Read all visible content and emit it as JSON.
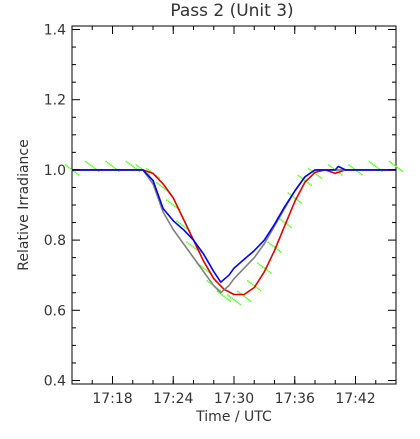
{
  "chart_data": {
    "type": "line",
    "title": "Pass 2 (Unit 3)",
    "xlabel": "Time / UTC",
    "ylabel": "Relative Irradiance",
    "xlim": [
      "17:14",
      "17:46"
    ],
    "ylim": [
      0.39,
      1.41
    ],
    "x_ticks": [
      "17:18",
      "17:24",
      "17:30",
      "17:36",
      "17:42"
    ],
    "y_ticks": [
      "0.4",
      "0.6",
      "0.8",
      "1.0",
      "1.2",
      "1.4"
    ],
    "grid": false,
    "legend": "none",
    "series": [
      {
        "color": "#66ff33",
        "style": "scatter",
        "points": [
          [
            "17:14",
            1.0
          ],
          [
            "17:16",
            1.01
          ],
          [
            "17:18",
            1.01
          ],
          [
            "17:20",
            1.01
          ],
          [
            "17:21",
            1.0
          ],
          [
            "17:22",
            0.99
          ],
          [
            "17:23",
            0.95
          ],
          [
            "17:24",
            0.9
          ],
          [
            "17:25",
            0.84
          ],
          [
            "17:26",
            0.78
          ],
          [
            "17:27",
            0.72
          ],
          [
            "17:28",
            0.67
          ],
          [
            "17:29",
            0.64
          ],
          [
            "17:30",
            0.63
          ],
          [
            "17:31",
            0.64
          ],
          [
            "17:32",
            0.67
          ],
          [
            "17:33",
            0.72
          ],
          [
            "17:34",
            0.78
          ],
          [
            "17:35",
            0.85
          ],
          [
            "17:36",
            0.92
          ],
          [
            "17:37",
            0.97
          ],
          [
            "17:38",
            0.99
          ],
          [
            "17:40",
            1.0
          ],
          [
            "17:42",
            1.0
          ],
          [
            "17:44",
            1.01
          ],
          [
            "17:46",
            1.01
          ]
        ]
      },
      {
        "color": "#dd0000",
        "style": "line",
        "points": [
          [
            "17:14",
            1.0
          ],
          [
            "17:20",
            1.0
          ],
          [
            "17:21",
            1.0
          ],
          [
            "17:22",
            0.99
          ],
          [
            "17:23",
            0.96
          ],
          [
            "17:24",
            0.92
          ],
          [
            "17:25",
            0.86
          ],
          [
            "17:26",
            0.8
          ],
          [
            "17:27",
            0.74
          ],
          [
            "17:28",
            0.69
          ],
          [
            "17:29",
            0.66
          ],
          [
            "17:30",
            0.645
          ],
          [
            "17:31",
            0.645
          ],
          [
            "17:32",
            0.665
          ],
          [
            "17:33",
            0.71
          ],
          [
            "17:34",
            0.77
          ],
          [
            "17:35",
            0.84
          ],
          [
            "17:36",
            0.91
          ],
          [
            "17:37",
            0.965
          ],
          [
            "17:38",
            0.993
          ],
          [
            "17:39",
            1.0
          ],
          [
            "17:40",
            0.99
          ],
          [
            "17:41",
            1.0
          ],
          [
            "17:46",
            1.0
          ]
        ]
      },
      {
        "color": "#808080",
        "style": "line",
        "points": [
          [
            "17:14",
            1.0
          ],
          [
            "17:20",
            1.0
          ],
          [
            "17:21",
            1.0
          ],
          [
            "17:22",
            0.96
          ],
          [
            "17:23",
            0.88
          ],
          [
            "17:24",
            0.83
          ],
          [
            "17:25",
            0.79
          ],
          [
            "17:26",
            0.75
          ],
          [
            "17:27",
            0.71
          ],
          [
            "17:28",
            0.67
          ],
          [
            "17:28.7",
            0.65
          ],
          [
            "17:29.5",
            0.67
          ],
          [
            "17:30",
            0.69
          ],
          [
            "17:31",
            0.72
          ],
          [
            "17:32",
            0.75
          ],
          [
            "17:33",
            0.79
          ],
          [
            "17:34",
            0.84
          ],
          [
            "17:35",
            0.89
          ],
          [
            "17:36",
            0.94
          ],
          [
            "17:37",
            0.98
          ],
          [
            "17:38",
            1.0
          ],
          [
            "17:46",
            1.0
          ]
        ]
      },
      {
        "color": "#0000ee",
        "style": "line",
        "points": [
          [
            "17:14",
            1.0
          ],
          [
            "17:20",
            1.0
          ],
          [
            "17:21",
            1.0
          ],
          [
            "17:22",
            0.97
          ],
          [
            "17:23",
            0.89
          ],
          [
            "17:24",
            0.855
          ],
          [
            "17:25",
            0.83
          ],
          [
            "17:26",
            0.8
          ],
          [
            "17:27",
            0.76
          ],
          [
            "17:28",
            0.71
          ],
          [
            "17:28.7",
            0.68
          ],
          [
            "17:29.5",
            0.7
          ],
          [
            "17:30",
            0.72
          ],
          [
            "17:31",
            0.745
          ],
          [
            "17:32",
            0.77
          ],
          [
            "17:33",
            0.8
          ],
          [
            "17:34",
            0.845
          ],
          [
            "17:35",
            0.895
          ],
          [
            "17:36",
            0.94
          ],
          [
            "17:37",
            0.98
          ],
          [
            "17:38",
            1.0
          ],
          [
            "17:40",
            1.0
          ],
          [
            "17:40.3",
            1.01
          ],
          [
            "17:41",
            1.0
          ],
          [
            "17:46",
            1.0
          ]
        ]
      }
    ]
  }
}
